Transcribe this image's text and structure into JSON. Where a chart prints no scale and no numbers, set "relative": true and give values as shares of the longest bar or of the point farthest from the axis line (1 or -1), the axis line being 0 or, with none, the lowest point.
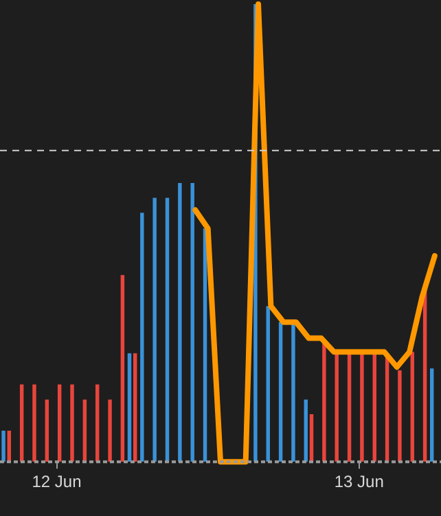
{
  "chart_data": {
    "type": "bar",
    "relative": true,
    "categories": [
      null,
      null,
      null,
      null,
      "12 Jun",
      null,
      null,
      null,
      null,
      null,
      null,
      null,
      null,
      null,
      null,
      null,
      null,
      null,
      null,
      null,
      null,
      null,
      null,
      null,
      null,
      null,
      null,
      null,
      "13 Jun",
      null,
      null,
      null,
      null,
      null,
      null
    ],
    "series": [
      {
        "type": "line",
        "color": "#ff9800",
        "values": [
          null,
          null,
          null,
          null,
          null,
          null,
          null,
          null,
          null,
          null,
          null,
          null,
          null,
          null,
          null,
          0.55,
          0.51,
          0,
          0,
          0,
          1,
          0.34,
          0.305,
          0.305,
          0.27,
          0.27,
          0.24,
          0.24,
          0.24,
          0.24,
          0.24,
          0.207,
          0.24,
          0.36,
          0.45
        ]
      },
      {
        "color": "#3a92d8",
        "values": [
          0.068,
          0,
          0,
          0,
          0,
          0,
          0,
          0,
          0,
          0,
          0.237,
          0.544,
          0.577,
          0.577,
          0.609,
          0.609,
          0.51,
          0,
          0,
          0,
          1,
          0.34,
          0.305,
          0.305,
          0.136,
          0,
          0,
          0,
          0,
          0,
          0,
          0,
          0,
          0,
          0.204
        ]
      },
      {
        "color": "#e8453c",
        "values": [
          0.068,
          0.169,
          0.169,
          0.136,
          0.169,
          0.169,
          0.136,
          0.169,
          0.136,
          0.408,
          0.237,
          0,
          0,
          0,
          0,
          0,
          0,
          0,
          0,
          0,
          0,
          0,
          0,
          0,
          0.104,
          0.266,
          0.237,
          0.237,
          0.237,
          0.237,
          0.237,
          0.2,
          0.24,
          0.379,
          null
        ]
      }
    ],
    "ref_lines": [
      {
        "axis": "y",
        "value": 0.68,
        "color": "#d0d0d0",
        "line_style": "dashed"
      }
    ],
    "legend": false
  }
}
